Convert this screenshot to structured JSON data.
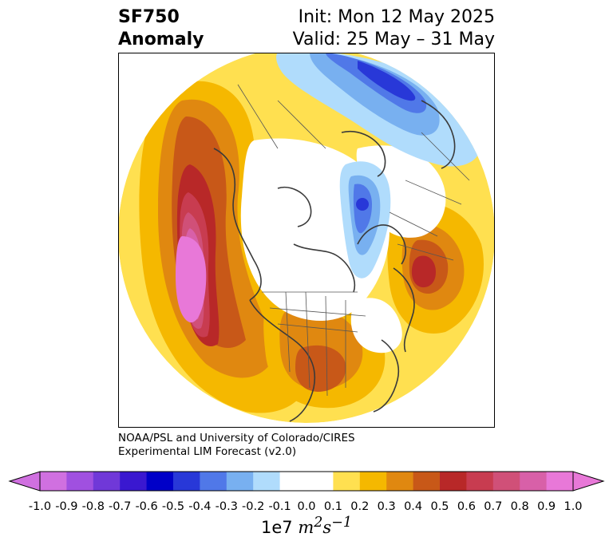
{
  "header": {
    "variable": "SF750",
    "kind": "Anomaly",
    "init": "Init: Mon 12 May 2025",
    "valid": "Valid: 25 May – 31 May"
  },
  "credit": {
    "line1": "NOAA/PSL and University of Colorado/CIRES",
    "line2": "Experimental LIM Forecast (v2.0)"
  },
  "colorbar": {
    "levels": [
      "-1.0",
      "-0.9",
      "-0.8",
      "-0.7",
      "-0.6",
      "-0.5",
      "-0.4",
      "-0.3",
      "-0.2",
      "-0.1",
      "0.0",
      "0.1",
      "0.2",
      "0.3",
      "0.4",
      "0.5",
      "0.6",
      "0.7",
      "0.8",
      "0.9",
      "1.0"
    ],
    "colors": [
      "#d070e0",
      "#a050e0",
      "#7038d8",
      "#3a18d0",
      "#0000c8",
      "#2838d8",
      "#5078e8",
      "#78b0f0",
      "#b0dcfc",
      "#ffffff",
      "#ffffff",
      "#ffe050",
      "#f5b800",
      "#e08810",
      "#c85818",
      "#b82828",
      "#c83c50",
      "#d05078",
      "#d860a8",
      "#e878d8"
    ],
    "label_prefix": "1e7 ",
    "label_unit": "m",
    "label_sup1": "2",
    "label_mid": "s",
    "label_sup2": "−1"
  },
  "map": {
    "projection": "north-polar-stereographic",
    "features": [
      "coastlines",
      "country-borders",
      "us-state-borders",
      "filled-contours"
    ]
  }
}
